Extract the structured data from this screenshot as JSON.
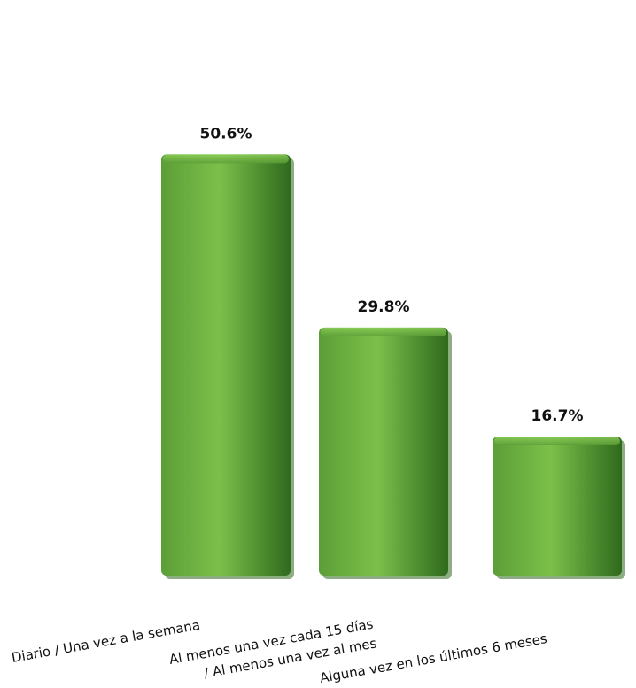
{
  "chart_data": {
    "type": "bar",
    "categories": [
      [
        "Diario /  Una vez a la semana"
      ],
      [
        "Al menos una vez cada 15 días",
        "/ Al menos una vez al mes"
      ],
      [
        "Alguna vez en los últimos 6 meses"
      ]
    ],
    "values": [
      50.6,
      29.8,
      16.7
    ],
    "value_labels": [
      "50.6%",
      "29.8%",
      "16.7%"
    ],
    "ylim": [
      0,
      55
    ],
    "grid": false,
    "legend": "none"
  },
  "colors": {
    "bar_light": "#7cc04a",
    "bar_mid": "#5c9e37",
    "bar_dark": "#2f6a1d"
  }
}
